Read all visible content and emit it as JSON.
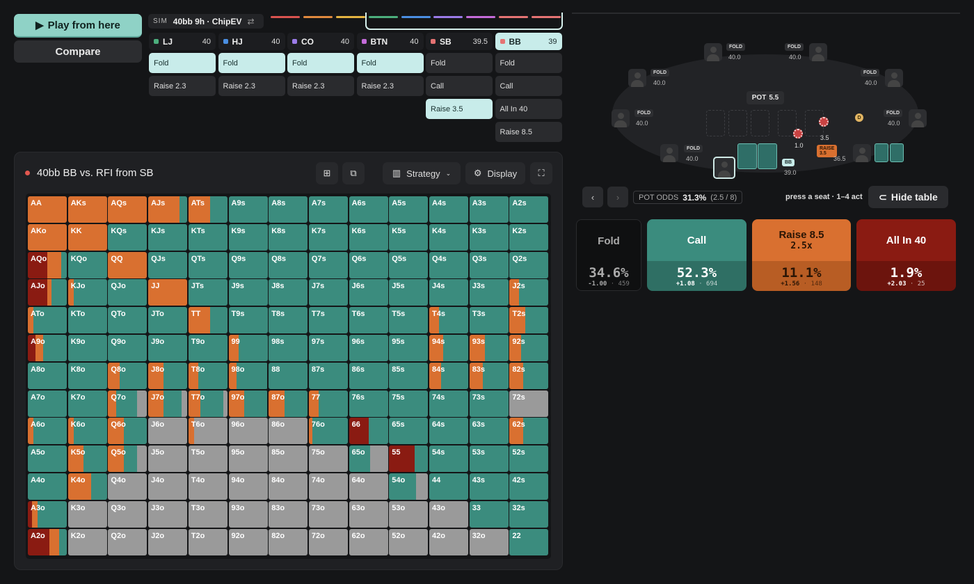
{
  "buttons": {
    "play": "Play from here",
    "compare": "Compare"
  },
  "sim": {
    "tag": "SIM",
    "label": "40bb 9h · ChipEV",
    "swap": "⇄"
  },
  "positions": [
    {
      "name": "LJ",
      "stack": "40",
      "color": "#4caf7d",
      "actions": [
        "Fold",
        "Raise 2.3"
      ],
      "selected": 0
    },
    {
      "name": "HJ",
      "stack": "40",
      "color": "#4a8fe2",
      "actions": [
        "Fold",
        "Raise 2.3"
      ],
      "selected": 0
    },
    {
      "name": "CO",
      "stack": "40",
      "color": "#9b7be8",
      "actions": [
        "Fold",
        "Raise 2.3"
      ],
      "selected": 0
    },
    {
      "name": "BTN",
      "stack": "40",
      "color": "#c46bd9",
      "actions": [
        "Fold",
        "Raise 2.3"
      ],
      "selected": 0
    },
    {
      "name": "SB",
      "stack": "39.5",
      "color": "#e57373",
      "actions": [
        "Fold",
        "Call",
        "Raise 3.5"
      ],
      "selected": 2
    },
    {
      "name": "BB",
      "stack": "39",
      "color": "#e57373",
      "actions": [
        "Fold",
        "Call",
        "All In 40",
        "Raise 8.5"
      ],
      "selected": -1,
      "active": true
    }
  ],
  "seg_colors": [
    "#d9534f",
    "#e0893e",
    "#e3b341",
    "#4caf7d",
    "#4a8fe2",
    "#9b7be8",
    "#c46bd9",
    "#e57373",
    "#e57373"
  ],
  "panel": {
    "title": "40bb BB vs. RFI from SB",
    "strategy": "Strategy",
    "display": "Display"
  },
  "grid": {
    "ranks": [
      "A",
      "K",
      "Q",
      "J",
      "T",
      "9",
      "8",
      "7",
      "6",
      "5",
      "4",
      "3",
      "2"
    ],
    "colors": {
      "raise": "#d97030",
      "call": "#3b8c7e",
      "fold": "#9a9a9a",
      "allin": "#8a1b12"
    },
    "mix": {
      "AA": [
        0,
        0,
        100,
        0
      ],
      "AKs": [
        0,
        0,
        100,
        0
      ],
      "AQs": [
        0,
        0,
        100,
        0
      ],
      "AJs": [
        0,
        20,
        80,
        0
      ],
      "ATs": [
        0,
        45,
        55,
        0
      ],
      "AKo": [
        0,
        0,
        100,
        0
      ],
      "KK": [
        0,
        0,
        100,
        0
      ],
      "AQo": [
        0,
        15,
        35,
        50
      ],
      "QQ": [
        0,
        0,
        100,
        0
      ],
      "AJo": [
        0,
        40,
        10,
        50
      ],
      "KJo": [
        0,
        85,
        15,
        0
      ],
      "JJ": [
        0,
        0,
        100,
        0
      ],
      "J2s": [
        0,
        75,
        25,
        0
      ],
      "ATo": [
        0,
        85,
        15,
        0
      ],
      "TT": [
        0,
        45,
        55,
        0
      ],
      "T4s": [
        0,
        75,
        25,
        0
      ],
      "T2s": [
        0,
        60,
        40,
        0
      ],
      "A9o": [
        0,
        60,
        20,
        20
      ],
      "99": [
        0,
        75,
        25,
        0
      ],
      "94s": [
        0,
        65,
        35,
        0
      ],
      "93s": [
        0,
        60,
        40,
        0
      ],
      "92s": [
        0,
        70,
        30,
        0
      ],
      "Q8o": [
        0,
        70,
        30,
        0
      ],
      "J8o": [
        0,
        60,
        40,
        0
      ],
      "T8o": [
        0,
        75,
        25,
        0
      ],
      "98o": [
        0,
        80,
        20,
        0
      ],
      "84s": [
        0,
        70,
        30,
        0
      ],
      "83s": [
        0,
        65,
        35,
        0
      ],
      "82s": [
        0,
        65,
        35,
        0
      ],
      "Q7o": [
        25,
        55,
        20,
        0
      ],
      "J7o": [
        15,
        45,
        40,
        0
      ],
      "T7o": [
        10,
        60,
        30,
        0
      ],
      "97o": [
        0,
        60,
        40,
        0
      ],
      "87o": [
        0,
        60,
        40,
        0
      ],
      "77": [
        0,
        75,
        25,
        0
      ],
      "72s": [
        100,
        0,
        0,
        0
      ],
      "A6o": [
        0,
        85,
        15,
        0
      ],
      "K6o": [
        0,
        85,
        15,
        0
      ],
      "Q6o": [
        0,
        60,
        40,
        0
      ],
      "J6o": [
        100,
        0,
        0,
        0
      ],
      "T6o": [
        85,
        0,
        15,
        0
      ],
      "96o": [
        100,
        0,
        0,
        0
      ],
      "86o": [
        100,
        0,
        0,
        0
      ],
      "76o": [
        0,
        90,
        10,
        0
      ],
      "66": [
        0,
        50,
        0,
        50
      ],
      "62s": [
        0,
        65,
        35,
        0
      ],
      "K5o": [
        0,
        60,
        40,
        0
      ],
      "Q5o": [
        25,
        35,
        40,
        0
      ],
      "J5o": [
        100,
        0,
        0,
        0
      ],
      "T5o": [
        100,
        0,
        0,
        0
      ],
      "95o": [
        100,
        0,
        0,
        0
      ],
      "85o": [
        100,
        0,
        0,
        0
      ],
      "75o": [
        100,
        0,
        0,
        0
      ],
      "65o": [
        45,
        55,
        0,
        0
      ],
      "55": [
        0,
        35,
        0,
        65
      ],
      "K4o": [
        0,
        40,
        60,
        0
      ],
      "Q4o": [
        100,
        0,
        0,
        0
      ],
      "J4o": [
        100,
        0,
        0,
        0
      ],
      "T4o": [
        100,
        0,
        0,
        0
      ],
      "94o": [
        100,
        0,
        0,
        0
      ],
      "84o": [
        100,
        0,
        0,
        0
      ],
      "74o": [
        100,
        0,
        0,
        0
      ],
      "64o": [
        100,
        0,
        0,
        0
      ],
      "54o": [
        30,
        70,
        0,
        0
      ],
      "A3o": [
        0,
        75,
        15,
        10
      ],
      "K3o": [
        100,
        0,
        0,
        0
      ],
      "Q3o": [
        100,
        0,
        0,
        0
      ],
      "J3o": [
        100,
        0,
        0,
        0
      ],
      "T3o": [
        100,
        0,
        0,
        0
      ],
      "93o": [
        100,
        0,
        0,
        0
      ],
      "83o": [
        100,
        0,
        0,
        0
      ],
      "73o": [
        100,
        0,
        0,
        0
      ],
      "63o": [
        100,
        0,
        0,
        0
      ],
      "53o": [
        100,
        0,
        0,
        0
      ],
      "43o": [
        100,
        0,
        0,
        0
      ],
      "A2o": [
        0,
        20,
        25,
        55
      ],
      "K2o": [
        100,
        0,
        0,
        0
      ],
      "Q2o": [
        100,
        0,
        0,
        0
      ],
      "J2o": [
        100,
        0,
        0,
        0
      ],
      "T2o": [
        100,
        0,
        0,
        0
      ],
      "92o": [
        100,
        0,
        0,
        0
      ],
      "82o": [
        100,
        0,
        0,
        0
      ],
      "72o": [
        100,
        0,
        0,
        0
      ],
      "62o": [
        100,
        0,
        0,
        0
      ],
      "52o": [
        100,
        0,
        0,
        0
      ],
      "42o": [
        100,
        0,
        0,
        0
      ],
      "32o": [
        100,
        0,
        0,
        0
      ]
    }
  },
  "table": {
    "pot_label": "POT",
    "pot_value": "5.5",
    "seats": [
      {
        "badge": "FOLD",
        "stack": "40.0"
      },
      {
        "badge": "FOLD",
        "stack": "40.0"
      },
      {
        "badge": "FOLD",
        "stack": "40.0"
      },
      {
        "badge": "FOLD",
        "stack": "40.0"
      },
      {
        "badge": "FOLD",
        "stack": "40.0"
      },
      {
        "badge": "FOLD",
        "stack": "40.0"
      },
      {
        "badge": "FOLD",
        "stack": "40.0"
      },
      {
        "badge": "BB",
        "stack": "39.0"
      },
      {
        "badge": "RAISE 3.5",
        "stack": "36.5"
      }
    ],
    "chips": [
      {
        "value": "1.0"
      },
      {
        "value": "3.5"
      }
    ],
    "dealer": "D"
  },
  "controls": {
    "pot_odds_label": "POT ODDS",
    "pot_odds_value": "31.3%",
    "pot_odds_detail": "(2.5 / 8)",
    "hint": "press a seat · 1–4 act",
    "hide": "Hide table"
  },
  "actions": [
    {
      "label": "Fold",
      "pct": "34.6%",
      "ev": "-1.00",
      "combos": "459",
      "bg_top": "#0f1011",
      "bg_bot": "#0f1011",
      "color": "#aaa"
    },
    {
      "label": "Call",
      "pct": "52.3%",
      "ev": "+1.08",
      "combos": "694",
      "bg_top": "#3b8c7e",
      "bg_bot": "#2f6f64",
      "color": "#fff"
    },
    {
      "label": "Raise 8.5",
      "sub": "2.5x",
      "pct": "11.1%",
      "ev": "+1.56",
      "combos": "148",
      "bg_top": "#d97030",
      "bg_bot": "#b85d24",
      "color": "#2a1505"
    },
    {
      "label": "All In 40",
      "pct": "1.9%",
      "ev": "+2.03",
      "combos": "25",
      "bg_top": "#8a1b12",
      "bg_bot": "#6c140d",
      "color": "#fff"
    }
  ]
}
